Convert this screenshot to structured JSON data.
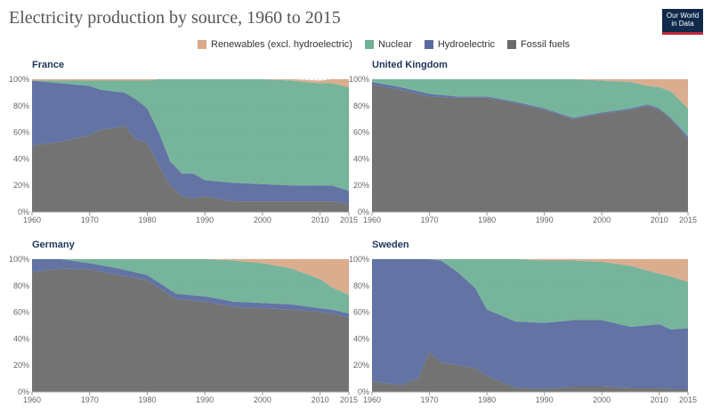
{
  "title": "Electricity production by source, 1960 to 2015",
  "logo": {
    "line1": "Our World",
    "line2": "in Data"
  },
  "colors": {
    "renewables": "#d9a989",
    "nuclear": "#6fb096",
    "hydro": "#5a6b9f",
    "fossil": "#6b6b6b"
  },
  "legend": [
    {
      "key": "renewables",
      "label": "Renewables (excl. hydroelectric)"
    },
    {
      "key": "nuclear",
      "label": "Nuclear"
    },
    {
      "key": "hydro",
      "label": "Hydroelectric"
    },
    {
      "key": "fossil",
      "label": "Fossil fuels"
    }
  ],
  "chart_data": [
    {
      "type": "area",
      "title": "France",
      "x": [
        1960,
        1965,
        1970,
        1972,
        1974,
        1976,
        1978,
        1980,
        1982,
        1984,
        1986,
        1988,
        1990,
        1995,
        2000,
        2005,
        2010,
        2012,
        2015
      ],
      "xticks": [
        1960,
        1970,
        1980,
        1990,
        2000,
        2010,
        2015
      ],
      "yticks": [
        "0%",
        "20%",
        "40%",
        "60%",
        "80%",
        "100%"
      ],
      "ylim": [
        0,
        100
      ],
      "series": [
        {
          "name": "Fossil fuels",
          "key": "fossil",
          "values": [
            50,
            53,
            58,
            62,
            63,
            65,
            55,
            52,
            35,
            20,
            12,
            10,
            12,
            8,
            8,
            8,
            8,
            8,
            6
          ]
        },
        {
          "name": "Hydroelectric",
          "key": "hydro",
          "values": [
            49,
            44,
            37,
            30,
            28,
            25,
            30,
            26,
            25,
            18,
            17,
            19,
            12,
            14,
            13,
            12,
            12,
            12,
            10
          ]
        },
        {
          "name": "Nuclear",
          "key": "nuclear",
          "values": [
            0,
            2,
            4,
            7,
            8,
            9,
            14,
            21,
            40,
            62,
            71,
            71,
            76,
            78,
            79,
            79,
            77,
            77,
            78
          ]
        },
        {
          "name": "Renewables (excl. hydroelectric)",
          "key": "renewables",
          "values": [
            1,
            1,
            1,
            1,
            1,
            1,
            1,
            1,
            0,
            0,
            0,
            0,
            0,
            0,
            0,
            1,
            2,
            3,
            6
          ]
        }
      ]
    },
    {
      "type": "area",
      "title": "United Kingdom",
      "x": [
        1960,
        1965,
        1970,
        1975,
        1980,
        1985,
        1990,
        1995,
        2000,
        2005,
        2008,
        2010,
        2012,
        2015
      ],
      "xticks": [
        1960,
        1970,
        1980,
        1990,
        2000,
        2010,
        2015
      ],
      "yticks": [
        "0%",
        "20%",
        "40%",
        "60%",
        "80%",
        "100%"
      ],
      "ylim": [
        0,
        100
      ],
      "series": [
        {
          "name": "Fossil fuels",
          "key": "fossil",
          "values": [
            96,
            92,
            87,
            86,
            86,
            82,
            77,
            70,
            74,
            77,
            80,
            77,
            70,
            55
          ]
        },
        {
          "name": "Hydroelectric",
          "key": "hydro",
          "values": [
            2,
            2,
            2,
            1,
            1,
            1,
            1,
            1,
            1,
            1,
            1,
            1,
            1,
            2
          ]
        },
        {
          "name": "Nuclear",
          "key": "nuclear",
          "values": [
            2,
            6,
            11,
            13,
            13,
            17,
            22,
            29,
            24,
            20,
            14,
            16,
            20,
            21
          ]
        },
        {
          "name": "Renewables (excl. hydroelectric)",
          "key": "renewables",
          "values": [
            0,
            0,
            0,
            0,
            0,
            0,
            0,
            0,
            1,
            2,
            5,
            6,
            9,
            22
          ]
        }
      ]
    },
    {
      "type": "area",
      "title": "Germany",
      "x": [
        1960,
        1965,
        1970,
        1975,
        1980,
        1985,
        1990,
        1995,
        2000,
        2005,
        2010,
        2012,
        2015
      ],
      "xticks": [
        1960,
        1970,
        1980,
        1990,
        2000,
        2010,
        2015
      ],
      "yticks": [
        "0%",
        "20%",
        "40%",
        "60%",
        "80%",
        "100%"
      ],
      "ylim": [
        0,
        100
      ],
      "series": [
        {
          "name": "Fossil fuels",
          "key": "fossil",
          "values": [
            90,
            93,
            92,
            88,
            84,
            70,
            68,
            64,
            63,
            62,
            60,
            59,
            56
          ]
        },
        {
          "name": "Hydroelectric",
          "key": "hydro",
          "values": [
            10,
            7,
            5,
            5,
            4,
            4,
            4,
            4,
            4,
            4,
            3,
            3,
            3
          ]
        },
        {
          "name": "Nuclear",
          "key": "nuclear",
          "values": [
            0,
            0,
            3,
            7,
            12,
            26,
            28,
            31,
            30,
            27,
            22,
            17,
            14
          ]
        },
        {
          "name": "Renewables (excl. hydroelectric)",
          "key": "renewables",
          "values": [
            0,
            0,
            0,
            0,
            0,
            0,
            0,
            1,
            3,
            7,
            15,
            21,
            27
          ]
        }
      ]
    },
    {
      "type": "area",
      "title": "Sweden",
      "x": [
        1960,
        1965,
        1968,
        1970,
        1972,
        1975,
        1978,
        1980,
        1985,
        1990,
        1995,
        2000,
        2005,
        2010,
        2012,
        2015
      ],
      "xticks": [
        1960,
        1970,
        1980,
        1990,
        2000,
        2010,
        2015
      ],
      "yticks": [
        "0%",
        "20%",
        "40%",
        "60%",
        "80%",
        "100%"
      ],
      "ylim": [
        0,
        100
      ],
      "series": [
        {
          "name": "Fossil fuels",
          "key": "fossil",
          "values": [
            8,
            5,
            10,
            30,
            22,
            20,
            18,
            12,
            3,
            2,
            4,
            4,
            3,
            3,
            2,
            2
          ]
        },
        {
          "name": "Hydroelectric",
          "key": "hydro",
          "values": [
            92,
            95,
            90,
            70,
            77,
            70,
            60,
            50,
            50,
            50,
            50,
            50,
            46,
            48,
            45,
            46
          ]
        },
        {
          "name": "Nuclear",
          "key": "nuclear",
          "values": [
            0,
            0,
            0,
            0,
            1,
            10,
            22,
            38,
            47,
            47,
            45,
            44,
            46,
            38,
            40,
            35
          ]
        },
        {
          "name": "Renewables (excl. hydroelectric)",
          "key": "renewables",
          "values": [
            0,
            0,
            0,
            0,
            0,
            0,
            0,
            0,
            0,
            1,
            1,
            2,
            5,
            11,
            13,
            17
          ]
        }
      ]
    }
  ]
}
